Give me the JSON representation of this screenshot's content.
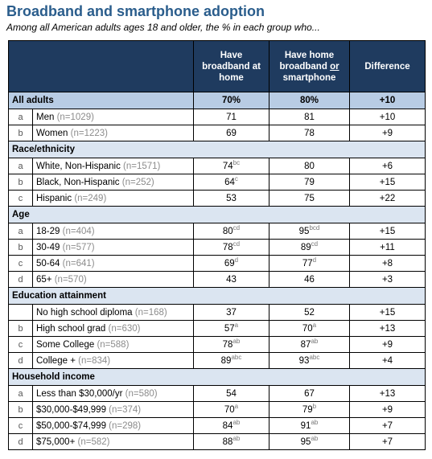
{
  "title": "Broadband and smartphone adoption",
  "subtitle": "Among all American adults ages 18 and older, the % in each group who...",
  "headers": {
    "col1": "Have broadband at home",
    "col2_pre": "Have home broadband ",
    "col2_ul": "or",
    "col2_post": " smartphone",
    "col3": "Difference"
  },
  "all_adults": {
    "label": "All adults",
    "v1": "70%",
    "v2": "80%",
    "v3": "+10"
  },
  "sections": [
    {
      "title": "",
      "rows": [
        {
          "letter": "a",
          "label": "Men",
          "n": "(n=1029)",
          "v1": "71",
          "s1": "",
          "v2": "81",
          "s2": "",
          "v3": "+10"
        },
        {
          "letter": "b",
          "label": "Women",
          "n": "(n=1223)",
          "v1": "69",
          "s1": "",
          "v2": "78",
          "s2": "",
          "v3": "+9"
        }
      ]
    },
    {
      "title": "Race/ethnicity",
      "rows": [
        {
          "letter": "a",
          "label": "White, Non-Hispanic",
          "n": "(n=1571)",
          "v1": "74",
          "s1": "bc",
          "v2": "80",
          "s2": "",
          "v3": "+6"
        },
        {
          "letter": "b",
          "label": "Black, Non-Hispanic",
          "n": "(n=252)",
          "v1": "64",
          "s1": "c",
          "v2": "79",
          "s2": "",
          "v3": "+15"
        },
        {
          "letter": "c",
          "label": "Hispanic",
          "n": "(n=249)",
          "v1": "53",
          "s1": "",
          "v2": "75",
          "s2": "",
          "v3": "+22"
        }
      ]
    },
    {
      "title": "Age",
      "rows": [
        {
          "letter": "a",
          "label": "18-29",
          "n": "(n=404)",
          "v1": "80",
          "s1": "cd",
          "v2": "95",
          "s2": "bcd",
          "v3": "+15"
        },
        {
          "letter": "b",
          "label": "30-49",
          "n": "(n=577)",
          "v1": "78",
          "s1": "cd",
          "v2": "89",
          "s2": "cd",
          "v3": "+11"
        },
        {
          "letter": "c",
          "label": "50-64",
          "n": "(n=641)",
          "v1": "69",
          "s1": "d",
          "v2": "77",
          "s2": "d",
          "v3": "+8"
        },
        {
          "letter": "d",
          "label": "65+",
          "n": "(n=570)",
          "v1": "43",
          "s1": "",
          "v2": "46",
          "s2": "",
          "v3": "+3"
        }
      ]
    },
    {
      "title": "Education attainment",
      "rows": [
        {
          "letter": "",
          "label": "No high school diploma",
          "n": "(n=168)",
          "v1": "37",
          "s1": "",
          "v2": "52",
          "s2": "",
          "v3": "+15"
        },
        {
          "letter": "b",
          "label": "High school grad",
          "n": "(n=630)",
          "v1": "57",
          "s1": "a",
          "v2": "70",
          "s2": "a",
          "v3": "+13"
        },
        {
          "letter": "c",
          "label": "Some College",
          "n": "(n=588)",
          "v1": "78",
          "s1": "ab",
          "v2": "87",
          "s2": "ab",
          "v3": "+9"
        },
        {
          "letter": "d",
          "label": "College +",
          "n": "(n=834)",
          "v1": "89",
          "s1": "abc",
          "v2": "93",
          "s2": "abc",
          "v3": "+4"
        }
      ]
    },
    {
      "title": "Household income",
      "rows": [
        {
          "letter": "a",
          "label": "Less than $30,000/yr",
          "n": "(n=580)",
          "v1": "54",
          "s1": "",
          "v2": "67",
          "s2": "",
          "v3": "+13"
        },
        {
          "letter": "b",
          "label": "$30,000-$49,999",
          "n": "(n=374)",
          "v1": "70",
          "s1": "a",
          "v2": "79",
          "s2": "b",
          "v3": "+9"
        },
        {
          "letter": "c",
          "label": "$50,000-$74,999",
          "n": "(n=298)",
          "v1": "84",
          "s1": "ab",
          "v2": "91",
          "s2": "ab",
          "v3": "+7"
        },
        {
          "letter": "d",
          "label": "$75,000+",
          "n": "(n=582)",
          "v1": "88",
          "s1": "ab",
          "v2": "95",
          "s2": "ab",
          "v3": "+7"
        }
      ]
    }
  ],
  "colors": {
    "title": "#2a5d8c",
    "header_bg": "#1f3b5f",
    "all_adults_bg": "#b8cce4",
    "section_bg": "#dbe5f1"
  }
}
